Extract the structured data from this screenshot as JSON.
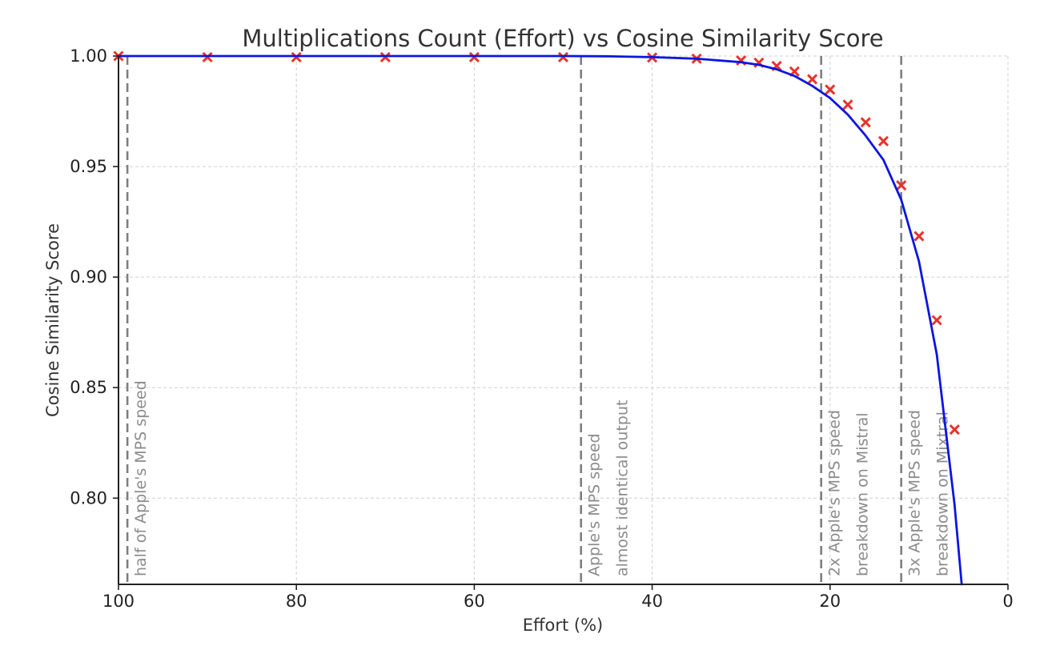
{
  "chart_data": {
    "type": "scatter",
    "title": "Multiplications Count (Effort) vs Cosine Similarity Score",
    "xlabel": "Effort (%)",
    "ylabel": "Cosine Similarity Score",
    "xlim": [
      100,
      0
    ],
    "ylim": [
      0.761,
      1.0
    ],
    "x_reversed": true,
    "grid": true,
    "x_ticks": [
      100,
      80,
      60,
      40,
      20,
      0
    ],
    "x_tick_labels": [
      "100",
      "80",
      "60",
      "40",
      "20",
      "0"
    ],
    "y_ticks": [
      0.8,
      0.85,
      0.9,
      0.95,
      1.0
    ],
    "y_tick_labels": [
      "0.80",
      "0.85",
      "0.90",
      "0.95",
      "1.00"
    ],
    "series": [
      {
        "kind": "markers",
        "marker": "x",
        "color": "#e8332b",
        "x": [
          100,
          90,
          80,
          70,
          60,
          50,
          40,
          35,
          30,
          28,
          26,
          24,
          22,
          20,
          18,
          16,
          14,
          12,
          10,
          8,
          6
        ],
        "y": [
          1.0,
          0.9995,
          0.9995,
          0.9995,
          0.9995,
          0.9995,
          0.9993,
          0.9988,
          0.998,
          0.997,
          0.9955,
          0.993,
          0.9895,
          0.9848,
          0.978,
          0.97,
          0.9615,
          0.9415,
          0.9185,
          0.8805,
          0.831
        ]
      },
      {
        "kind": "line",
        "color": "#0b16e0",
        "x": [
          100,
          90,
          80,
          70,
          60,
          50,
          45,
          40,
          35,
          30,
          28,
          26,
          24,
          22,
          20,
          18,
          16,
          14,
          12,
          10,
          8,
          6,
          5.2
        ],
        "y": [
          1.0,
          1.0,
          1.0,
          1.0,
          1.0,
          1.0,
          0.9999,
          0.9995,
          0.9988,
          0.9972,
          0.996,
          0.994,
          0.991,
          0.9865,
          0.981,
          0.9735,
          0.964,
          0.953,
          0.935,
          0.907,
          0.865,
          0.797,
          0.761
        ]
      }
    ],
    "vlines": [
      {
        "x": 99,
        "label": "half of Apple's MPS speed"
      },
      {
        "x": 48,
        "label": "Apple's MPS speed\nalmost identical output"
      },
      {
        "x": 21,
        "label": "2x Apple's MPS speed\nbreakdown on Mistral"
      },
      {
        "x": 12,
        "label": "3x Apple's MPS speed\nbreakdown on Mixtral"
      }
    ],
    "colors": {
      "markers": "#e8332b",
      "line": "#0b16e0",
      "vline": "#7f7f7f",
      "annotation": "#8c8c8c",
      "grid": "#d0d0d0"
    }
  }
}
